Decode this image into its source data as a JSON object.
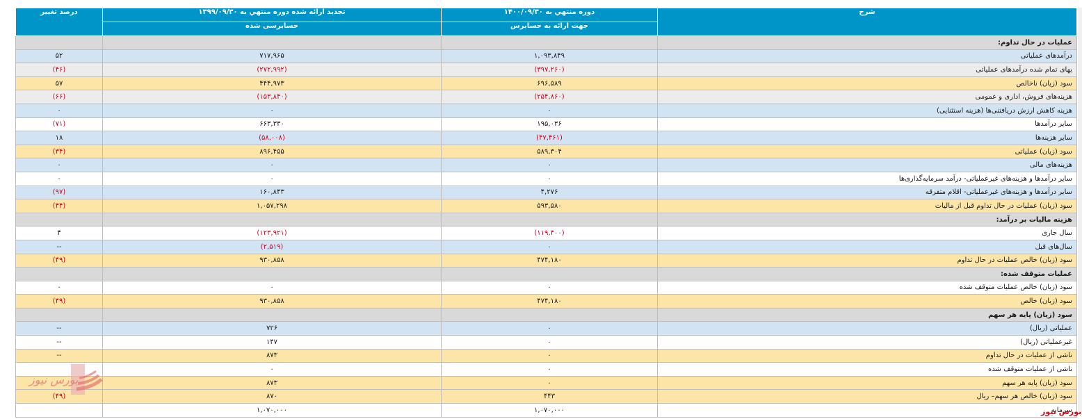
{
  "header": {
    "col_desc": "شرح",
    "col_current": "دوره منتهي به ۱۴۰۰/۰۹/۳۰",
    "col_current_sub": "جهت ارائه به حسابرس",
    "col_prev": "تجدید ارائه شده دوره منتهي به ۱۳۹۹/۰۹/۳۰",
    "col_prev_sub": "حسابرسی شده",
    "col_change": "درصد تغییر"
  },
  "rows": [
    {
      "type": "section",
      "label": "عملیات در حال تداوم:",
      "cur": "",
      "prev": "",
      "chg": ""
    },
    {
      "type": "blue",
      "label": "درآمدهای عملیاتی",
      "cur": "۱,۰۹۳,۸۴۹",
      "prev": "۷۱۷,۹۶۵",
      "chg": "۵۲"
    },
    {
      "type": "grey",
      "label": "بهای تمام شده درآمدهای عملیاتی",
      "cur": "(۳۹۷,۲۶۰)",
      "prev": "(۲۷۲,۹۹۲)",
      "chg": "(۴۶)",
      "neg": true
    },
    {
      "type": "gold",
      "label": "سود (زیان) ناخالص",
      "cur": "۶۹۶,۵۸۹",
      "prev": "۴۴۴,۹۷۳",
      "chg": "۵۷"
    },
    {
      "type": "grey",
      "label": "هزینه‌های فروش، اداری و عمومی",
      "cur": "(۲۵۴,۸۶۰)",
      "prev": "(۱۵۳,۸۴۰)",
      "chg": "(۶۶)",
      "neg": true
    },
    {
      "type": "blue",
      "label": "هزینه کاهش ارزش دریافتنی‌ها (هزینه استثنایی)",
      "cur": "۰",
      "prev": "۰",
      "chg": "۰"
    },
    {
      "type": "white",
      "label": "سایر درآمدها",
      "cur": "۱۹۵,۰۳۶",
      "prev": "۶۶۳,۳۳۰",
      "chg": "(۷۱)",
      "negchg": true
    },
    {
      "type": "blue",
      "label": "سایر هزینه‌ها",
      "cur": "(۴۷,۴۶۱)",
      "prev": "(۵۸,۰۰۸)",
      "chg": "۱۸",
      "negvals": true
    },
    {
      "type": "gold",
      "label": "سود (زیان) عملیاتی",
      "cur": "۵۸۹,۳۰۴",
      "prev": "۸۹۶,۴۵۵",
      "chg": "(۳۴)",
      "negchg": true
    },
    {
      "type": "blue",
      "label": "هزینه‌های مالی",
      "cur": "۰",
      "prev": "۰",
      "chg": "۰"
    },
    {
      "type": "white",
      "label": "سایر درآمدها و هزینه‌های غیرعملیاتی- درآمد سرمایه‌گذاری‌ها",
      "cur": "۰",
      "prev": "۰",
      "chg": "۰"
    },
    {
      "type": "blue",
      "label": "سایر درآمدها و هزینه‌های غیرعملیاتی- اقلام متفرقه",
      "cur": "۴,۲۷۶",
      "prev": "۱۶۰,۸۴۳",
      "chg": "(۹۷)",
      "negchg": true
    },
    {
      "type": "gold",
      "label": "سود (زیان) عملیات در حال تداوم قبل از مالیات",
      "cur": "۵۹۳,۵۸۰",
      "prev": "۱,۰۵۷,۲۹۸",
      "chg": "(۴۴)",
      "negchg": true
    },
    {
      "type": "section",
      "label": "هزینه مالیات بر درآمد:",
      "cur": "",
      "prev": "",
      "chg": ""
    },
    {
      "type": "white",
      "label": "سال جاری",
      "cur": "(۱۱۹,۴۰۰)",
      "prev": "(۱۲۳,۹۲۱)",
      "chg": "۴",
      "negvals": true
    },
    {
      "type": "blue",
      "label": "سال‌های قبل",
      "cur": "۰",
      "prev": "(۲,۵۱۹)",
      "chg": "--",
      "negprev": true
    },
    {
      "type": "gold",
      "label": "سود (زیان) خالص عملیات در حال تداوم",
      "cur": "۴۷۴,۱۸۰",
      "prev": "۹۳۰,۸۵۸",
      "chg": "(۴۹)",
      "negchg": true
    },
    {
      "type": "section",
      "label": "عملیات متوقف شده:",
      "cur": "",
      "prev": "",
      "chg": ""
    },
    {
      "type": "white",
      "label": "سود (زیان) خالص عملیات متوقف شده",
      "cur": "۰",
      "prev": "۰",
      "chg": "۰"
    },
    {
      "type": "gold",
      "label": "سود (زیان) خالص",
      "cur": "۴۷۴,۱۸۰",
      "prev": "۹۳۰,۸۵۸",
      "chg": "(۴۹)",
      "negchg": true
    },
    {
      "type": "section",
      "label": "سود (زیان) پایه هر سهم",
      "cur": "",
      "prev": "",
      "chg": ""
    },
    {
      "type": "blue",
      "label": "عملیاتی (ریال)",
      "cur": "۰",
      "prev": "۷۲۶",
      "chg": "--"
    },
    {
      "type": "white",
      "label": "غیرعملیاتی (ریال)",
      "cur": "۰",
      "prev": "۱۴۷",
      "chg": "--"
    },
    {
      "type": "gold",
      "label": "ناشی از عملیات در حال تداوم",
      "cur": "۰",
      "prev": "۸۷۳",
      "chg": "--"
    },
    {
      "type": "white",
      "label": "ناشی از عملیات متوقف شده",
      "cur": "۰",
      "prev": "۰",
      "chg": ""
    },
    {
      "type": "gold",
      "label": "سود (زیان) پایه هر سهم",
      "cur": "۰",
      "prev": "۸۷۳",
      "chg": ""
    },
    {
      "type": "gold",
      "label": "سود (زیان) خالص هر سهم– ریال",
      "cur": "۴۴۳",
      "prev": "۸۷۰",
      "chg": "(۴۹)",
      "negchg": true
    },
    {
      "type": "white",
      "label": "سرمایه",
      "cur": "۱,۰۷۰,۰۰۰",
      "prev": "۱,۰۷۰,۰۰۰",
      "chg": ""
    }
  ],
  "watermark": "بورس نیوز",
  "brand": "بورس نیوز",
  "colors": {
    "header": "#0095c8",
    "negative": "#d0021b",
    "gold": "#fde5a8",
    "blue": "#d2e4f4"
  }
}
